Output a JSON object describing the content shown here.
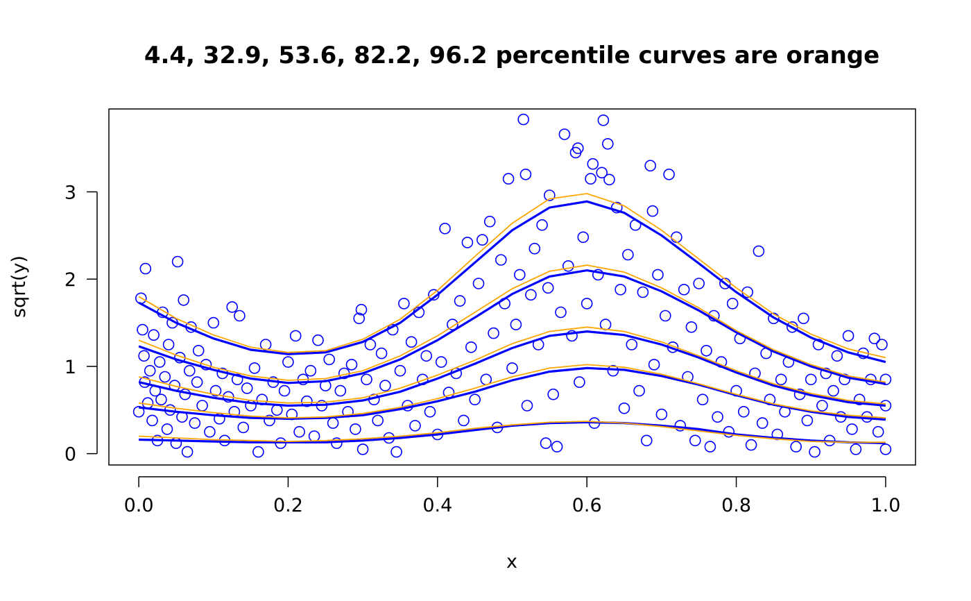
{
  "chart_data": {
    "type": "scatter",
    "title": "4.4, 32.9, 53.6, 82.2, 96.2 percentile curves are orange",
    "xlabel": "x",
    "ylabel": "sqrt(y)",
    "xlim": [
      -0.04,
      1.04
    ],
    "ylim": [
      -0.13,
      3.95
    ],
    "x_ticks": [
      0.0,
      0.2,
      0.4,
      0.6,
      0.8,
      1.0
    ],
    "x_tick_labels": [
      "0.0",
      "0.2",
      "0.4",
      "0.6",
      "0.8",
      "1.0"
    ],
    "y_ticks": [
      0,
      1,
      2,
      3
    ],
    "y_tick_labels": [
      "0",
      "1",
      "2",
      "3"
    ],
    "grid": false,
    "legend": "none",
    "point_color": "#0000ff",
    "point_marker": "open-circle",
    "fitted_curve_color": "#0000ff",
    "percentile_curve_color": "#ffa500",
    "percentiles": [
      4.4,
      32.9,
      53.6,
      82.2,
      96.2
    ],
    "curve_x": [
      0.0,
      0.05,
      0.1,
      0.15,
      0.2,
      0.25,
      0.3,
      0.35,
      0.4,
      0.45,
      0.5,
      0.55,
      0.6,
      0.65,
      0.7,
      0.75,
      0.8,
      0.85,
      0.9,
      0.95,
      1.0
    ],
    "fitted_curves": [
      {
        "values": [
          0.16,
          0.15,
          0.14,
          0.13,
          0.13,
          0.13,
          0.15,
          0.18,
          0.22,
          0.27,
          0.32,
          0.35,
          0.36,
          0.35,
          0.32,
          0.28,
          0.22,
          0.18,
          0.15,
          0.13,
          0.12
        ]
      },
      {
        "values": [
          0.53,
          0.48,
          0.44,
          0.41,
          0.4,
          0.41,
          0.44,
          0.51,
          0.6,
          0.71,
          0.84,
          0.94,
          0.98,
          0.96,
          0.89,
          0.79,
          0.67,
          0.56,
          0.48,
          0.42,
          0.39
        ]
      },
      {
        "values": [
          0.82,
          0.72,
          0.64,
          0.58,
          0.55,
          0.56,
          0.61,
          0.71,
          0.86,
          1.03,
          1.21,
          1.35,
          1.4,
          1.36,
          1.25,
          1.1,
          0.93,
          0.78,
          0.67,
          0.59,
          0.55
        ]
      },
      {
        "values": [
          1.23,
          1.08,
          0.96,
          0.86,
          0.81,
          0.83,
          0.92,
          1.08,
          1.3,
          1.56,
          1.83,
          2.03,
          2.1,
          2.03,
          1.86,
          1.64,
          1.39,
          1.17,
          1.0,
          0.87,
          0.8
        ]
      },
      {
        "values": [
          1.73,
          1.5,
          1.32,
          1.19,
          1.14,
          1.16,
          1.28,
          1.5,
          1.82,
          2.19,
          2.56,
          2.82,
          2.89,
          2.76,
          2.5,
          2.18,
          1.85,
          1.56,
          1.33,
          1.16,
          1.05
        ]
      }
    ],
    "percentile_curves": [
      {
        "percentile": 4.4,
        "values": [
          0.2,
          0.18,
          0.16,
          0.15,
          0.14,
          0.15,
          0.17,
          0.2,
          0.24,
          0.29,
          0.33,
          0.36,
          0.37,
          0.35,
          0.31,
          0.26,
          0.21,
          0.17,
          0.14,
          0.13,
          0.13
        ]
      },
      {
        "percentile": 32.9,
        "values": [
          0.58,
          0.52,
          0.47,
          0.43,
          0.41,
          0.42,
          0.46,
          0.53,
          0.63,
          0.75,
          0.88,
          0.98,
          1.02,
          0.99,
          0.91,
          0.8,
          0.68,
          0.57,
          0.49,
          0.44,
          0.41
        ]
      },
      {
        "percentile": 53.6,
        "values": [
          0.88,
          0.77,
          0.68,
          0.61,
          0.58,
          0.59,
          0.64,
          0.75,
          0.9,
          1.07,
          1.26,
          1.4,
          1.45,
          1.4,
          1.28,
          1.12,
          0.95,
          0.8,
          0.69,
          0.61,
          0.57
        ]
      },
      {
        "percentile": 82.2,
        "values": [
          1.3,
          1.13,
          0.99,
          0.89,
          0.84,
          0.86,
          0.95,
          1.12,
          1.35,
          1.62,
          1.89,
          2.09,
          2.16,
          2.08,
          1.9,
          1.67,
          1.41,
          1.19,
          1.02,
          0.89,
          0.82
        ]
      },
      {
        "percentile": 96.2,
        "values": [
          1.8,
          1.55,
          1.36,
          1.22,
          1.16,
          1.18,
          1.31,
          1.54,
          1.87,
          2.26,
          2.64,
          2.92,
          2.98,
          2.84,
          2.56,
          2.23,
          1.9,
          1.6,
          1.37,
          1.2,
          1.1
        ]
      }
    ],
    "points": [
      [
        0.0,
        0.48
      ],
      [
        0.003,
        1.78
      ],
      [
        0.005,
        1.42
      ],
      [
        0.007,
        1.12
      ],
      [
        0.008,
        0.82
      ],
      [
        0.009,
        2.12
      ],
      [
        0.012,
        0.58
      ],
      [
        0.015,
        0.95
      ],
      [
        0.018,
        0.38
      ],
      [
        0.02,
        1.36
      ],
      [
        0.022,
        0.72
      ],
      [
        0.025,
        0.15
      ],
      [
        0.028,
        1.05
      ],
      [
        0.03,
        0.62
      ],
      [
        0.032,
        1.62
      ],
      [
        0.035,
        0.88
      ],
      [
        0.038,
        0.28
      ],
      [
        0.04,
        1.25
      ],
      [
        0.042,
        0.5
      ],
      [
        0.045,
        1.5
      ],
      [
        0.048,
        0.78
      ],
      [
        0.05,
        0.12
      ],
      [
        0.052,
        2.2
      ],
      [
        0.055,
        1.1
      ],
      [
        0.058,
        0.42
      ],
      [
        0.06,
        1.76
      ],
      [
        0.062,
        0.68
      ],
      [
        0.065,
        0.02
      ],
      [
        0.068,
        0.95
      ],
      [
        0.07,
        1.45
      ],
      [
        0.075,
        0.35
      ],
      [
        0.078,
        0.82
      ],
      [
        0.08,
        1.18
      ],
      [
        0.085,
        0.55
      ],
      [
        0.09,
        1.02
      ],
      [
        0.095,
        0.25
      ],
      [
        0.1,
        1.5
      ],
      [
        0.103,
        0.72
      ],
      [
        0.108,
        0.4
      ],
      [
        0.112,
        0.92
      ],
      [
        0.115,
        0.15
      ],
      [
        0.12,
        0.65
      ],
      [
        0.125,
        1.68
      ],
      [
        0.128,
        0.48
      ],
      [
        0.132,
        0.85
      ],
      [
        0.135,
        1.58
      ],
      [
        0.14,
        0.3
      ],
      [
        0.145,
        0.75
      ],
      [
        0.15,
        0.55
      ],
      [
        0.155,
        0.98
      ],
      [
        0.16,
        0.02
      ],
      [
        0.165,
        0.62
      ],
      [
        0.17,
        1.25
      ],
      [
        0.175,
        0.38
      ],
      [
        0.18,
        0.82
      ],
      [
        0.185,
        0.5
      ],
      [
        0.19,
        0.12
      ],
      [
        0.195,
        0.72
      ],
      [
        0.2,
        1.05
      ],
      [
        0.205,
        0.45
      ],
      [
        0.21,
        1.35
      ],
      [
        0.215,
        0.25
      ],
      [
        0.22,
        0.85
      ],
      [
        0.225,
        0.6
      ],
      [
        0.23,
        0.95
      ],
      [
        0.235,
        0.2
      ],
      [
        0.24,
        1.3
      ],
      [
        0.245,
        0.55
      ],
      [
        0.25,
        0.78
      ],
      [
        0.255,
        1.08
      ],
      [
        0.26,
        0.35
      ],
      [
        0.265,
        0.12
      ],
      [
        0.27,
        0.72
      ],
      [
        0.275,
        0.92
      ],
      [
        0.28,
        0.48
      ],
      [
        0.285,
        1.02
      ],
      [
        0.29,
        0.28
      ],
      [
        0.295,
        1.55
      ],
      [
        0.298,
        1.65
      ],
      [
        0.3,
        0.05
      ],
      [
        0.305,
        0.85
      ],
      [
        0.31,
        1.25
      ],
      [
        0.315,
        0.62
      ],
      [
        0.32,
        0.38
      ],
      [
        0.325,
        1.15
      ],
      [
        0.33,
        0.78
      ],
      [
        0.335,
        0.18
      ],
      [
        0.34,
        1.42
      ],
      [
        0.345,
        0.02
      ],
      [
        0.35,
        0.95
      ],
      [
        0.355,
        1.72
      ],
      [
        0.36,
        0.55
      ],
      [
        0.365,
        1.28
      ],
      [
        0.37,
        0.32
      ],
      [
        0.375,
        1.62
      ],
      [
        0.38,
        0.85
      ],
      [
        0.385,
        1.12
      ],
      [
        0.39,
        0.48
      ],
      [
        0.395,
        1.82
      ],
      [
        0.4,
        0.22
      ],
      [
        0.405,
        1.05
      ],
      [
        0.41,
        2.58
      ],
      [
        0.415,
        0.7
      ],
      [
        0.42,
        1.48
      ],
      [
        0.425,
        0.92
      ],
      [
        0.43,
        1.75
      ],
      [
        0.435,
        0.38
      ],
      [
        0.44,
        2.42
      ],
      [
        0.445,
        1.22
      ],
      [
        0.45,
        0.62
      ],
      [
        0.455,
        1.95
      ],
      [
        0.46,
        2.45
      ],
      [
        0.465,
        0.85
      ],
      [
        0.47,
        2.66
      ],
      [
        0.475,
        1.38
      ],
      [
        0.48,
        0.3
      ],
      [
        0.485,
        2.22
      ],
      [
        0.49,
        1.72
      ],
      [
        0.495,
        3.15
      ],
      [
        0.5,
        0.98
      ],
      [
        0.505,
        1.48
      ],
      [
        0.51,
        2.05
      ],
      [
        0.515,
        3.83
      ],
      [
        0.518,
        3.2
      ],
      [
        0.52,
        0.55
      ],
      [
        0.525,
        1.82
      ],
      [
        0.53,
        2.35
      ],
      [
        0.535,
        1.25
      ],
      [
        0.54,
        2.62
      ],
      [
        0.545,
        0.12
      ],
      [
        0.548,
        1.9
      ],
      [
        0.55,
        2.96
      ],
      [
        0.555,
        0.68
      ],
      [
        0.56,
        0.08
      ],
      [
        0.565,
        1.62
      ],
      [
        0.57,
        3.66
      ],
      [
        0.575,
        2.15
      ],
      [
        0.58,
        1.35
      ],
      [
        0.585,
        3.45
      ],
      [
        0.588,
        3.5
      ],
      [
        0.59,
        0.82
      ],
      [
        0.595,
        2.48
      ],
      [
        0.6,
        1.72
      ],
      [
        0.605,
        3.15
      ],
      [
        0.608,
        3.32
      ],
      [
        0.61,
        0.35
      ],
      [
        0.615,
        2.05
      ],
      [
        0.62,
        3.22
      ],
      [
        0.622,
        3.82
      ],
      [
        0.625,
        1.48
      ],
      [
        0.628,
        3.55
      ],
      [
        0.63,
        3.14
      ],
      [
        0.635,
        0.95
      ],
      [
        0.64,
        2.82
      ],
      [
        0.645,
        1.88
      ],
      [
        0.65,
        0.52
      ],
      [
        0.655,
        2.28
      ],
      [
        0.66,
        1.25
      ],
      [
        0.665,
        2.62
      ],
      [
        0.67,
        0.72
      ],
      [
        0.675,
        1.85
      ],
      [
        0.68,
        0.15
      ],
      [
        0.685,
        3.3
      ],
      [
        0.688,
        2.78
      ],
      [
        0.69,
        1.02
      ],
      [
        0.695,
        2.05
      ],
      [
        0.7,
        0.45
      ],
      [
        0.705,
        1.58
      ],
      [
        0.71,
        3.2
      ],
      [
        0.715,
        1.22
      ],
      [
        0.72,
        2.48
      ],
      [
        0.725,
        0.32
      ],
      [
        0.73,
        1.88
      ],
      [
        0.735,
        0.88
      ],
      [
        0.74,
        1.45
      ],
      [
        0.745,
        0.15
      ],
      [
        0.75,
        1.95
      ],
      [
        0.755,
        0.62
      ],
      [
        0.76,
        1.18
      ],
      [
        0.765,
        0.08
      ],
      [
        0.77,
        1.58
      ],
      [
        0.775,
        0.42
      ],
      [
        0.78,
        1.05
      ],
      [
        0.785,
        1.95
      ],
      [
        0.79,
        0.25
      ],
      [
        0.795,
        1.72
      ],
      [
        0.8,
        0.72
      ],
      [
        0.805,
        1.32
      ],
      [
        0.81,
        0.48
      ],
      [
        0.815,
        1.85
      ],
      [
        0.82,
        0.1
      ],
      [
        0.825,
        0.92
      ],
      [
        0.83,
        2.32
      ],
      [
        0.835,
        0.35
      ],
      [
        0.84,
        1.15
      ],
      [
        0.845,
        0.62
      ],
      [
        0.85,
        1.55
      ],
      [
        0.855,
        0.22
      ],
      [
        0.86,
        0.85
      ],
      [
        0.865,
        0.48
      ],
      [
        0.87,
        1.05
      ],
      [
        0.875,
        1.45
      ],
      [
        0.88,
        0.08
      ],
      [
        0.885,
        0.68
      ],
      [
        0.89,
        1.55
      ],
      [
        0.895,
        0.38
      ],
      [
        0.9,
        0.85
      ],
      [
        0.905,
        0.02
      ],
      [
        0.91,
        1.25
      ],
      [
        0.915,
        0.55
      ],
      [
        0.92,
        0.92
      ],
      [
        0.925,
        0.15
      ],
      [
        0.93,
        0.72
      ],
      [
        0.935,
        1.12
      ],
      [
        0.94,
        0.42
      ],
      [
        0.945,
        0.85
      ],
      [
        0.95,
        1.35
      ],
      [
        0.955,
        0.28
      ],
      [
        0.96,
        0.05
      ],
      [
        0.965,
        0.62
      ],
      [
        0.97,
        1.15
      ],
      [
        0.975,
        0.42
      ],
      [
        0.98,
        0.85
      ],
      [
        0.985,
        1.32
      ],
      [
        0.99,
        0.25
      ],
      [
        0.995,
        1.25
      ],
      [
        1.0,
        0.05
      ],
      [
        1.0,
        0.55
      ],
      [
        1.0,
        0.85
      ]
    ]
  }
}
